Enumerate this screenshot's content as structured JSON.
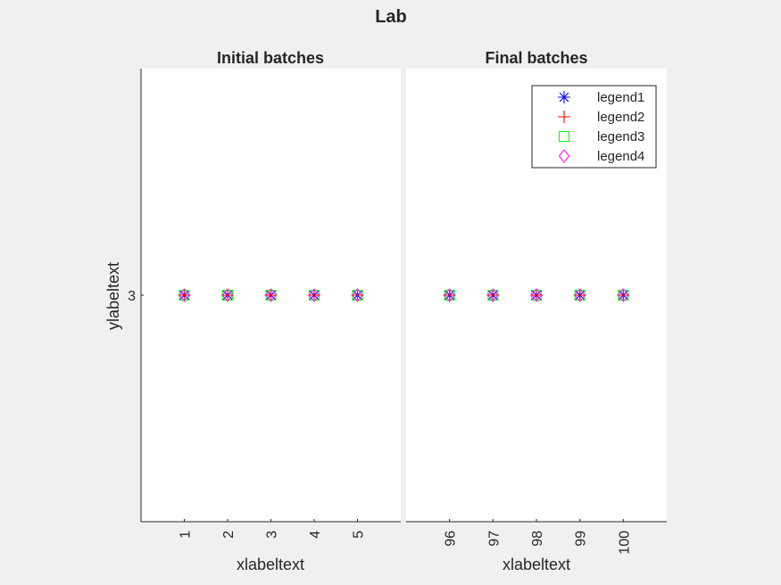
{
  "figure": {
    "title": "Lab",
    "background": "#f0f0f0"
  },
  "chart_data": [
    {
      "type": "scatter",
      "title": "Initial batches",
      "xlabel": "xlabeltext",
      "ylabel": "ylabeltext",
      "x": [
        1,
        2,
        3,
        4,
        5
      ],
      "xticks": [
        "1",
        "2",
        "3",
        "4",
        "5"
      ],
      "yticks": [
        "3"
      ],
      "xlim": [
        0,
        6
      ],
      "ylim": [
        2,
        4
      ],
      "grid": false,
      "series": [
        {
          "name": "legend1",
          "marker": "asterisk",
          "color": "#0000ff",
          "values": [
            3,
            3,
            3,
            3,
            3
          ]
        },
        {
          "name": "legend2",
          "marker": "plus",
          "color": "#ff0000",
          "values": [
            3,
            3,
            3,
            3,
            3
          ]
        },
        {
          "name": "legend3",
          "marker": "square",
          "color": "#00ff00",
          "values": [
            3,
            3,
            3,
            3,
            3
          ]
        },
        {
          "name": "legend4",
          "marker": "diamond",
          "color": "#ff00ff",
          "values": [
            3,
            3,
            3,
            3,
            3
          ]
        }
      ]
    },
    {
      "type": "scatter",
      "title": "Final batches",
      "xlabel": "xlabeltext",
      "x": [
        96,
        97,
        98,
        99,
        100
      ],
      "xticks": [
        "96",
        "97",
        "98",
        "99",
        "100"
      ],
      "xlim": [
        95,
        101
      ],
      "ylim": [
        2,
        4
      ],
      "grid": false,
      "legend": "top-right",
      "series": [
        {
          "name": "legend1",
          "marker": "asterisk",
          "color": "#0000ff",
          "values": [
            3,
            3,
            3,
            3,
            3
          ]
        },
        {
          "name": "legend2",
          "marker": "plus",
          "color": "#ff0000",
          "values": [
            3,
            3,
            3,
            3,
            3
          ]
        },
        {
          "name": "legend3",
          "marker": "square",
          "color": "#00ff00",
          "values": [
            3,
            3,
            3,
            3,
            3
          ]
        },
        {
          "name": "legend4",
          "marker": "diamond",
          "color": "#ff00ff",
          "values": [
            3,
            3,
            3,
            3,
            3
          ]
        }
      ]
    }
  ]
}
